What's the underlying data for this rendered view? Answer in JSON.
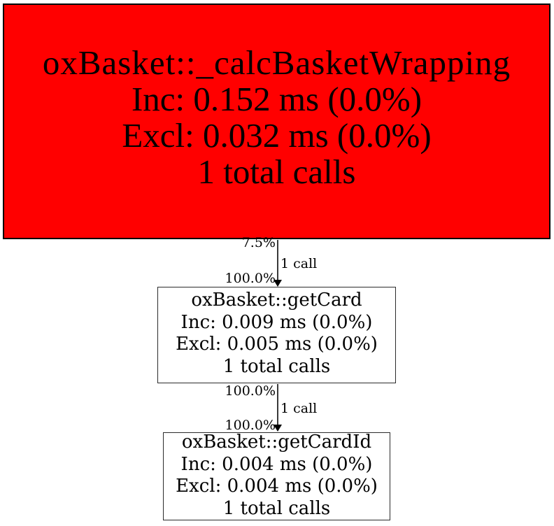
{
  "diagram": {
    "type": "callgraph",
    "background_color": "#ffffff",
    "edge_color": "#000000",
    "nodes": [
      {
        "id": "calc-basket-wrapping",
        "title": "oxBasket::_calcBasketWrapping",
        "inc": "Inc: 0.152 ms (0.0%)",
        "excl": "Excl: 0.032 ms (0.0%)",
        "calls": "1 total calls",
        "fill": "#ff0000"
      },
      {
        "id": "get-card",
        "title": "oxBasket::getCard",
        "inc": "Inc: 0.009 ms (0.0%)",
        "excl": "Excl: 0.005 ms (0.0%)",
        "calls": "1 total calls",
        "fill": "#ffffff"
      },
      {
        "id": "get-card-id",
        "title": "oxBasket::getCardId",
        "inc": "Inc: 0.004 ms (0.0%)",
        "excl": "Excl: 0.004 ms (0.0%)",
        "calls": "1 total calls",
        "fill": "#ffffff"
      }
    ],
    "edges": [
      {
        "from": "oxBasket::_calcBasketWrapping",
        "to": "oxBasket::getCard",
        "source_pct": "7.5%",
        "calls_label": "1 call",
        "target_pct": "100.0%"
      },
      {
        "from": "oxBasket::getCard",
        "to": "oxBasket::getCardId",
        "source_pct": "100.0%",
        "calls_label": "1 call",
        "target_pct": "100.0%"
      }
    ]
  }
}
